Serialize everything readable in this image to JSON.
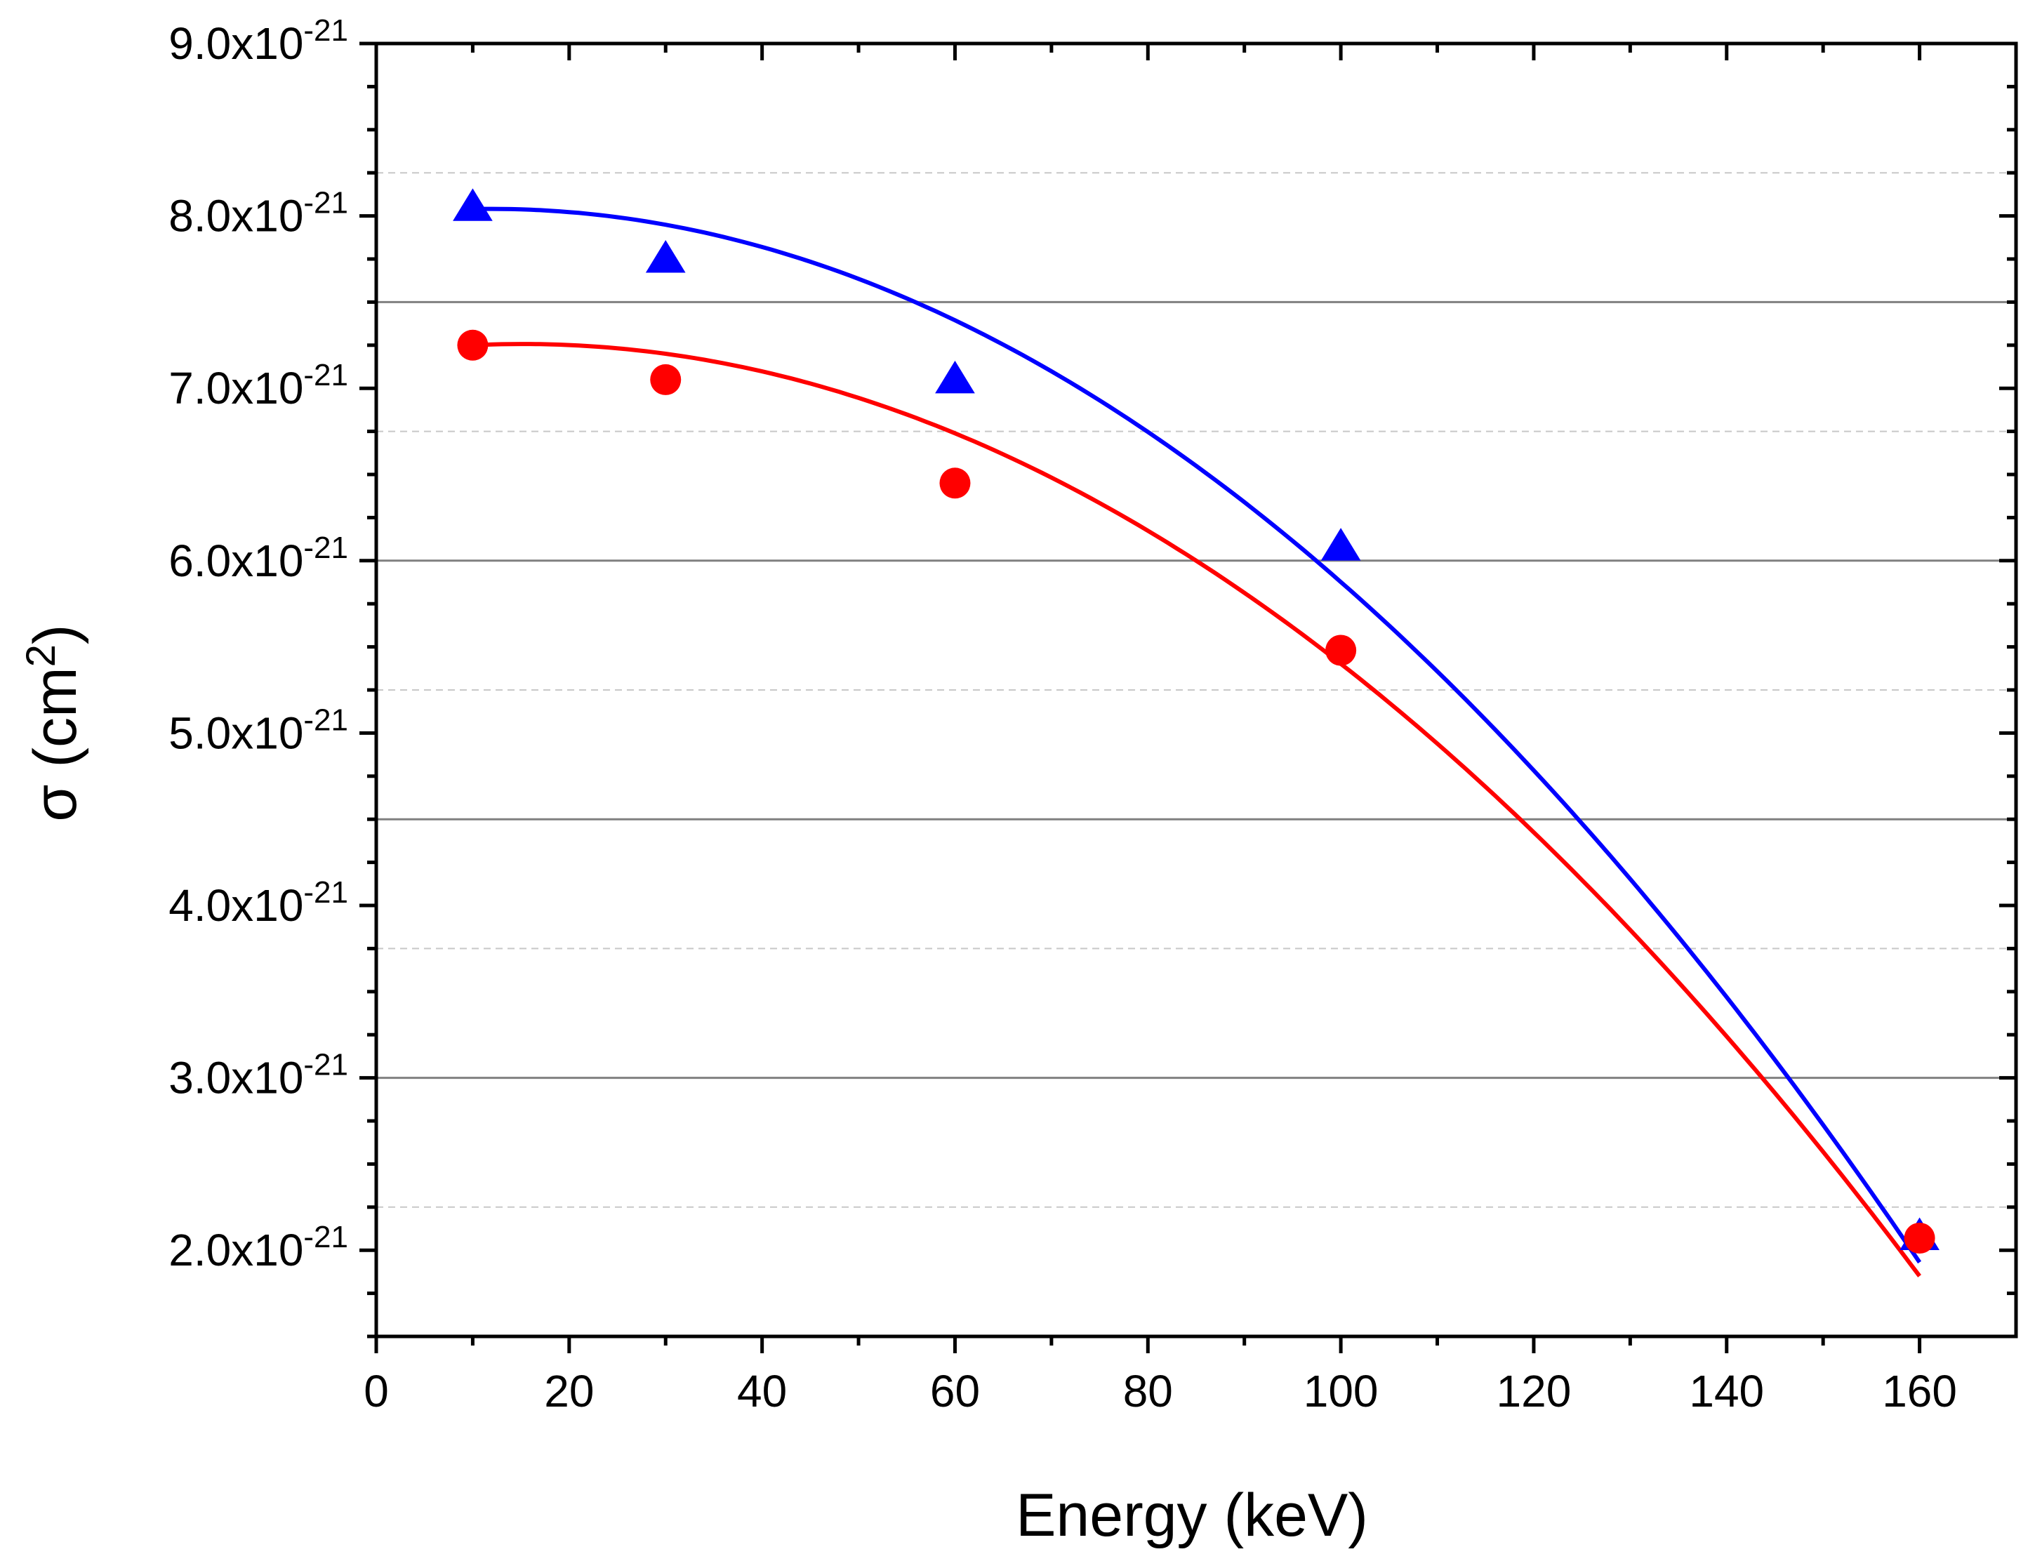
{
  "chart_data": {
    "type": "scatter",
    "title": "",
    "xlabel": "Energy (keV)",
    "ylabel_prefix": "σ (cm",
    "ylabel_sup": "2",
    "ylabel_suffix": ")",
    "xlim": [
      0,
      170
    ],
    "ylim": [
      1.5e-21,
      9e-21
    ],
    "x_ticks": [
      0,
      20,
      40,
      60,
      80,
      100,
      120,
      140,
      160
    ],
    "x_tick_labels": [
      "0",
      "20",
      "40",
      "60",
      "80",
      "100",
      "120",
      "140",
      "160"
    ],
    "y_ticks": [
      2e-21,
      3e-21,
      4e-21,
      5e-21,
      6e-21,
      7e-21,
      8e-21,
      9e-21
    ],
    "y_tick_mantissas": [
      "2.0x10",
      "3.0x10",
      "4.0x10",
      "5.0x10",
      "6.0x10",
      "7.0x10",
      "8.0x10",
      "9.0x10"
    ],
    "y_tick_exponent": "-21",
    "grid_major_y": [
      3e-21,
      4.5e-21,
      6e-21,
      7.5e-21
    ],
    "grid_minor_y": [
      2.25e-21,
      3.75e-21,
      5.25e-21,
      6.75e-21,
      8.25e-21
    ],
    "legend": "none",
    "series": [
      {
        "name": "triangles",
        "marker": "triangle",
        "color": "#0000ff",
        "x": [
          10,
          30,
          60,
          100,
          160
        ],
        "y": [
          8.05e-21,
          7.75e-21,
          7.05e-21,
          6.08e-21,
          2.08e-21
        ],
        "fit": {
          "type": "polynomial-2",
          "x_range": [
            10,
            160
          ],
          "points": [
            [
              10,
              8.04e-21
            ],
            [
              85,
              6.55e-21
            ],
            [
              160,
              1.93e-21
            ]
          ]
        }
      },
      {
        "name": "circles",
        "marker": "circle",
        "color": "#ff0000",
        "x": [
          10,
          30,
          60,
          100,
          160
        ],
        "y": [
          7.25e-21,
          7.05e-21,
          6.45e-21,
          5.48e-21,
          2.07e-21
        ],
        "fit": {
          "type": "polynomial-2",
          "x_range": [
            10,
            160
          ],
          "points": [
            [
              10,
              7.25e-21
            ],
            [
              85,
              6e-21
            ],
            [
              160,
              1.85e-21
            ]
          ]
        }
      }
    ]
  }
}
